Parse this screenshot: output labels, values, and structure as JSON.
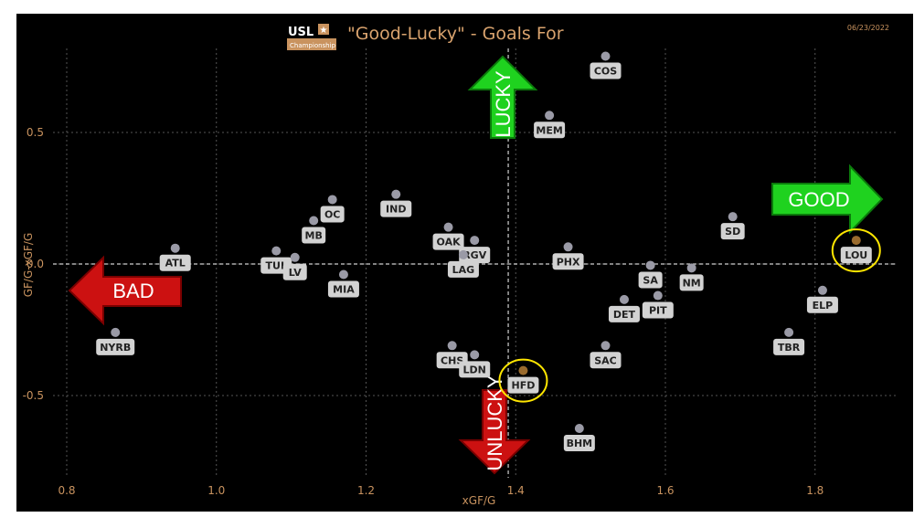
{
  "header": {
    "logo_text": "USL",
    "logo_subtext": "Championship",
    "title": "\"Good-Lucky\" - Goals For",
    "date": "06/23/2022"
  },
  "colors": {
    "background": "#000000",
    "axis_text": "#c9935f",
    "title": "#d9a36e",
    "point": "#9a9aa6",
    "label_box": "#d2d2d2",
    "good_arrow": "#1fd21f",
    "bad_arrow": "#cc1111",
    "highlight_ring": "#ffe600",
    "highlight_point": "#9a6b2e"
  },
  "quadrant_labels": {
    "good": "GOOD",
    "bad": "BAD",
    "lucky": "LUCKY",
    "unlucky": "UNLUCKY"
  },
  "chart_data": {
    "type": "scatter",
    "title": "\"Good-Lucky\" - Goals For",
    "xlabel": "xGF/G",
    "ylabel": "GF/G-xGF/G",
    "xlim": [
      0.8,
      1.9
    ],
    "ylim": [
      -0.75,
      0.78
    ],
    "xticks": [
      0.8,
      1.0,
      1.2,
      1.4,
      1.6,
      1.8
    ],
    "xtick_labels": [
      "0.8",
      "1.0",
      "1.2",
      "1.4",
      "1.6",
      "1.8"
    ],
    "yticks": [
      -0.5,
      0.0,
      0.5
    ],
    "ytick_labels": [
      "-0.5",
      "0.0",
      "0.5"
    ],
    "grid": true,
    "reference_lines": {
      "x": 1.39,
      "y": 0.0
    },
    "highlighted": [
      "LOU",
      "HFD"
    ],
    "points": [
      {
        "label": "COS",
        "x": 1.52,
        "y": 0.79
      },
      {
        "label": "MEM",
        "x": 1.445,
        "y": 0.565
      },
      {
        "label": "IND",
        "x": 1.24,
        "y": 0.265
      },
      {
        "label": "OC",
        "x": 1.155,
        "y": 0.245
      },
      {
        "label": "MB",
        "x": 1.13,
        "y": 0.165
      },
      {
        "label": "TUL",
        "x": 1.08,
        "y": 0.05
      },
      {
        "label": "LV",
        "x": 1.105,
        "y": 0.025
      },
      {
        "label": "ATL",
        "x": 0.945,
        "y": 0.06
      },
      {
        "label": "OAK",
        "x": 1.31,
        "y": 0.14
      },
      {
        "label": "RGV",
        "x": 1.345,
        "y": 0.09
      },
      {
        "label": "LAG",
        "x": 1.33,
        "y": 0.035
      },
      {
        "label": "MIA",
        "x": 1.17,
        "y": -0.04
      },
      {
        "label": "PHX",
        "x": 1.47,
        "y": 0.065
      },
      {
        "label": "SD",
        "x": 1.69,
        "y": 0.18
      },
      {
        "label": "LOU",
        "x": 1.855,
        "y": 0.09
      },
      {
        "label": "SA",
        "x": 1.58,
        "y": -0.005
      },
      {
        "label": "NM",
        "x": 1.635,
        "y": -0.015
      },
      {
        "label": "ELP",
        "x": 1.81,
        "y": -0.1
      },
      {
        "label": "PIT",
        "x": 1.59,
        "y": -0.12
      },
      {
        "label": "DET",
        "x": 1.545,
        "y": -0.135
      },
      {
        "label": "TBR",
        "x": 1.765,
        "y": -0.26
      },
      {
        "label": "SAC",
        "x": 1.52,
        "y": -0.31
      },
      {
        "label": "NYRB",
        "x": 0.865,
        "y": -0.26
      },
      {
        "label": "CHS",
        "x": 1.315,
        "y": -0.31
      },
      {
        "label": "LDN",
        "x": 1.345,
        "y": -0.345
      },
      {
        "label": "HFD",
        "x": 1.41,
        "y": -0.405
      },
      {
        "label": "BHM",
        "x": 1.485,
        "y": -0.625
      }
    ]
  }
}
